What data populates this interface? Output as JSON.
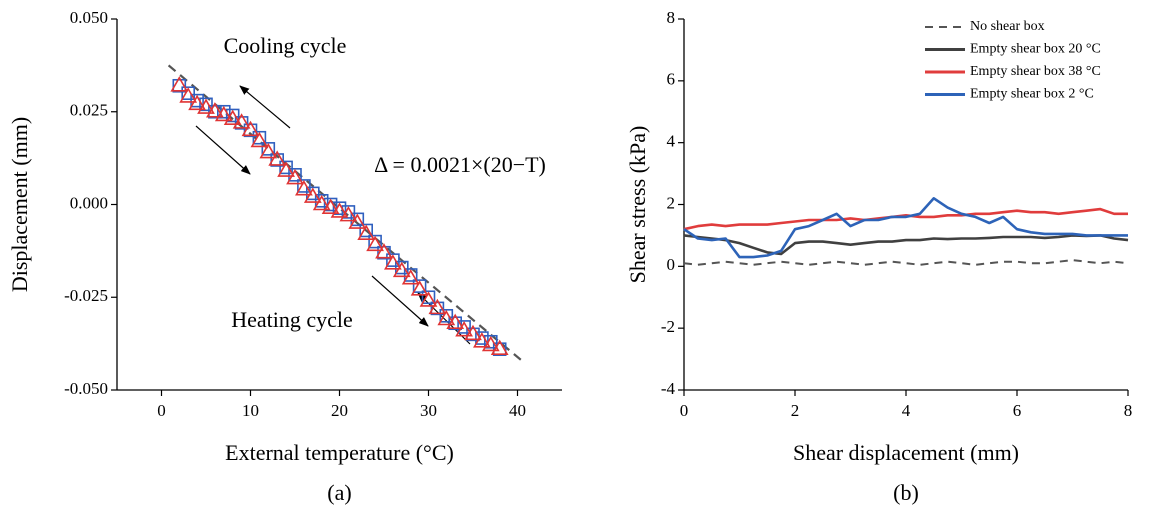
{
  "chart_data": [
    {
      "type": "scatter",
      "x_label": "External temperature (°C)",
      "y_label": "Displacement (mm)",
      "panel_label": "(a)",
      "annotations": [
        "Cooling cycle",
        "Heating cycle",
        "Δ = 0.0021×(20−T)"
      ],
      "xlim": [
        -5,
        45
      ],
      "xticks": [
        0,
        10,
        20,
        30,
        40
      ],
      "ylim": [
        -0.05,
        0.05
      ],
      "yticks": [
        {
          "value": 0.05,
          "label": "0.050"
        },
        {
          "value": 0.025,
          "label": "0.025"
        },
        {
          "value": 0,
          "label": "0.000"
        },
        {
          "value": -0.025,
          "label": "-0.025"
        },
        {
          "value": -0.05,
          "label": "-0.050"
        }
      ],
      "x": [
        2,
        3,
        4,
        5,
        6,
        7,
        8,
        9,
        10,
        11,
        12,
        13,
        14,
        15,
        16,
        17,
        18,
        19,
        20,
        21,
        22,
        23,
        24,
        25,
        26,
        27,
        28,
        29,
        30,
        31,
        32,
        33,
        34,
        35,
        36,
        37,
        38
      ],
      "series": [
        {
          "marker": "square",
          "color": "#2f5fbf",
          "values": [
            0.032,
            0.03,
            0.028,
            0.027,
            0.025,
            0.025,
            0.024,
            0.022,
            0.02,
            0.018,
            0.015,
            0.012,
            0.01,
            0.008,
            0.005,
            0.003,
            0.001,
            0.0,
            -0.001,
            -0.002,
            -0.004,
            -0.007,
            -0.01,
            -0.013,
            -0.015,
            -0.017,
            -0.019,
            -0.022,
            -0.025,
            -0.028,
            -0.03,
            -0.032,
            -0.033,
            -0.035,
            -0.036,
            -0.037,
            -0.039
          ]
        },
        {
          "marker": "triangle",
          "color": "#e03434",
          "values": [
            0.032,
            0.029,
            0.027,
            0.026,
            0.025,
            0.024,
            0.023,
            0.022,
            0.02,
            0.017,
            0.014,
            0.012,
            0.009,
            0.007,
            0.004,
            0.002,
            0.0,
            -0.001,
            -0.002,
            -0.003,
            -0.005,
            -0.008,
            -0.011,
            -0.013,
            -0.016,
            -0.018,
            -0.02,
            -0.023,
            -0.026,
            -0.028,
            -0.031,
            -0.032,
            -0.034,
            -0.035,
            -0.037,
            -0.038,
            -0.039
          ]
        }
      ],
      "fit": {
        "color": "#555555",
        "x": [
          0.8,
          40.7
        ],
        "values": [
          0.0375,
          -0.0425
        ]
      }
    },
    {
      "type": "line",
      "x_label": "Shear displacement (mm)",
      "y_label": "Shear stress (kPa)",
      "panel_label": "(b)",
      "xlim": [
        0,
        8
      ],
      "xticks": [
        0,
        2,
        4,
        6,
        8
      ],
      "ylim": [
        -4,
        8
      ],
      "yticks": [
        -4,
        -2,
        0,
        2,
        4,
        6,
        8
      ],
      "legend": "upper right",
      "x": [
        0,
        0.25,
        0.5,
        0.75,
        1,
        1.25,
        1.5,
        1.75,
        2,
        2.25,
        2.5,
        2.75,
        3,
        3.25,
        3.5,
        3.75,
        4,
        4.25,
        4.5,
        4.75,
        5,
        5.25,
        5.5,
        5.75,
        6,
        6.25,
        6.5,
        6.75,
        7,
        7.25,
        7.5,
        7.75,
        8
      ],
      "series": [
        {
          "name": "No shear box",
          "color": "#555555",
          "dash": true,
          "values": [
            0.1,
            0.05,
            0.1,
            0.15,
            0.1,
            0.05,
            0.1,
            0.15,
            0.1,
            0.05,
            0.1,
            0.15,
            0.1,
            0.05,
            0.1,
            0.15,
            0.1,
            0.05,
            0.1,
            0.15,
            0.1,
            0.05,
            0.1,
            0.15,
            0.15,
            0.1,
            0.1,
            0.15,
            0.2,
            0.15,
            0.1,
            0.15,
            0.1
          ]
        },
        {
          "name": "Empty shear box  20 °C",
          "color": "#404040",
          "values": [
            1.0,
            0.95,
            0.9,
            0.85,
            0.75,
            0.6,
            0.45,
            0.4,
            0.75,
            0.8,
            0.8,
            0.75,
            0.7,
            0.75,
            0.8,
            0.8,
            0.85,
            0.85,
            0.9,
            0.88,
            0.9,
            0.9,
            0.92,
            0.95,
            0.95,
            0.95,
            0.92,
            0.95,
            1.0,
            0.98,
            1.0,
            0.9,
            0.85
          ]
        },
        {
          "name": "Empty shear box  38 °C",
          "color": "#e03c3c",
          "values": [
            1.2,
            1.3,
            1.35,
            1.3,
            1.35,
            1.35,
            1.35,
            1.4,
            1.45,
            1.5,
            1.5,
            1.5,
            1.55,
            1.5,
            1.55,
            1.6,
            1.65,
            1.6,
            1.6,
            1.65,
            1.65,
            1.7,
            1.7,
            1.75,
            1.8,
            1.75,
            1.75,
            1.7,
            1.75,
            1.8,
            1.85,
            1.7,
            1.7
          ]
        },
        {
          "name": "Empty shear box  2 °C",
          "color": "#2d63b8",
          "values": [
            1.2,
            0.9,
            0.85,
            0.9,
            0.3,
            0.3,
            0.35,
            0.5,
            1.2,
            1.3,
            1.5,
            1.7,
            1.3,
            1.5,
            1.5,
            1.6,
            1.6,
            1.7,
            2.2,
            1.9,
            1.7,
            1.6,
            1.4,
            1.6,
            1.2,
            1.1,
            1.05,
            1.05,
            1.05,
            1.0,
            1.0,
            1.0,
            1.0
          ]
        }
      ]
    }
  ]
}
